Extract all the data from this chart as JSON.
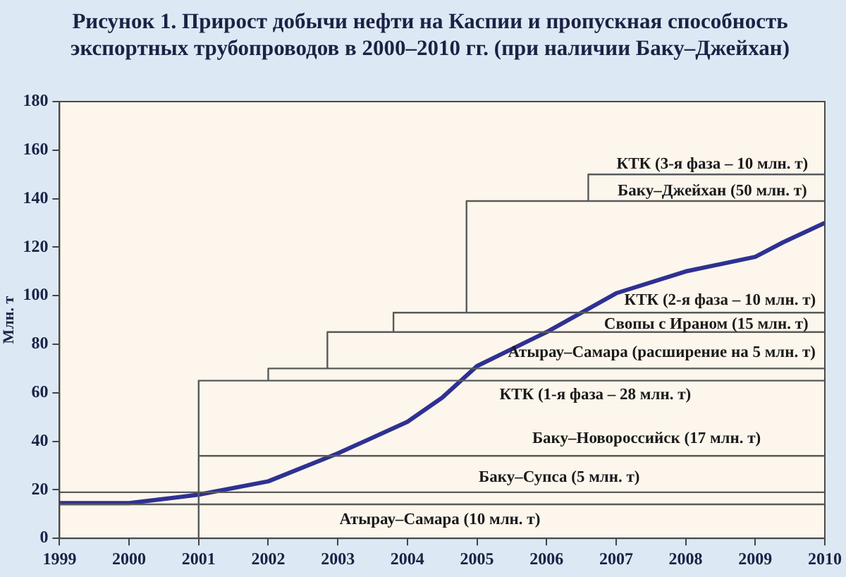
{
  "chart_data": {
    "type": "line",
    "title": "Рисунок 1. Прирост добычи нефти на Каспии и пропускная способность экспортных трубопроводов в 2000–2010 гг. (при наличии Баку–Джейхан)",
    "ylabel": "Млн. т",
    "xlim": [
      1999,
      2010
    ],
    "xticks": [
      1999,
      2000,
      2001,
      2002,
      2003,
      2004,
      2005,
      2006,
      2007,
      2008,
      2009,
      2010
    ],
    "ylim": [
      0,
      180
    ],
    "yticks": [
      0,
      20,
      40,
      60,
      80,
      100,
      120,
      140,
      160,
      180
    ],
    "grid": false,
    "legend": false,
    "marker": "none",
    "series": [
      {
        "color": "#5a5a5a",
        "x": [
          1999,
          2010
        ],
        "values": [
          14,
          14
        ]
      },
      {
        "color": "#5a5a5a",
        "x": [
          1999,
          2010
        ],
        "values": [
          19,
          19
        ]
      },
      {
        "color": "#5a5a5a",
        "x": [
          2001,
          2010
        ],
        "values": [
          34,
          34
        ]
      },
      {
        "color": "#5a5a5a",
        "x": [
          2001,
          2001,
          2010
        ],
        "values": [
          0,
          65,
          65
        ]
      },
      {
        "color": "#5a5a5a",
        "x": [
          2002,
          2002,
          2010
        ],
        "values": [
          65,
          70,
          70
        ]
      },
      {
        "color": "#5a5a5a",
        "x": [
          2002.85,
          2002.85,
          2010
        ],
        "values": [
          70,
          85,
          85
        ]
      },
      {
        "color": "#5a5a5a",
        "x": [
          2003.8,
          2003.8,
          2010
        ],
        "values": [
          85,
          93,
          93
        ]
      },
      {
        "color": "#5a5a5a",
        "x": [
          2004.85,
          2004.85,
          2010
        ],
        "values": [
          93,
          139,
          139
        ]
      },
      {
        "color": "#5a5a5a",
        "x": [
          2006.6,
          2006.6,
          2010
        ],
        "values": [
          139,
          150,
          150
        ]
      },
      {
        "color": "#2e3192",
        "x": [
          1999,
          2000,
          2001,
          2002,
          2003,
          2004,
          2004.5,
          2005,
          2006,
          2007,
          2008,
          2009,
          2009.4,
          2010
        ],
        "values": [
          14.5,
          14.5,
          18,
          23.5,
          35,
          48,
          58,
          71,
          85,
          101,
          110,
          116,
          122,
          130
        ]
      }
    ],
    "annotations": [
      "Атырау–Самара (10 млн. т)",
      "Баку–Супса (5 млн. т)",
      "Баку–Новороссийск (17 млн. т)",
      "КТК (1-я фаза – 28 млн. т)",
      "Атырау–Самара (расширение на 5 млн. т)",
      "Свопы с Ираном (15 млн. т)",
      "КТК (2-я фаза – 10 млн. т)",
      "Баку–Джейхан (50 млн. т)",
      "КТК (3-я фаза – 10 млн. т)"
    ]
  }
}
